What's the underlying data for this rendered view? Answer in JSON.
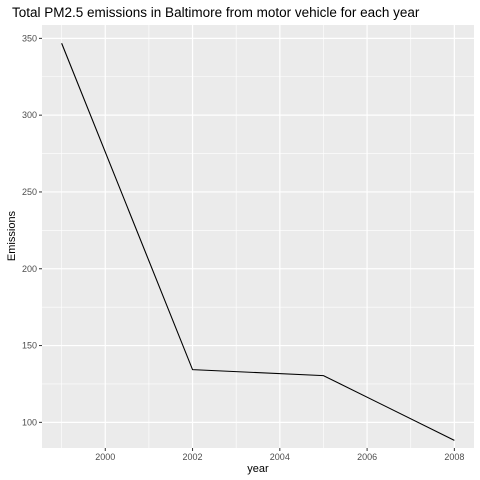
{
  "chart_data": {
    "type": "line",
    "title": "Total PM2.5 emissions in Baltimore from motor vehicle for each year",
    "xlabel": "year",
    "ylabel": "Emissions",
    "x": [
      1999,
      2002,
      2005,
      2008
    ],
    "series": [
      {
        "values": [
          346.82,
          134.31,
          130.43,
          88.28
        ]
      }
    ],
    "xlim": [
      1998.55,
      2008.45
    ],
    "ylim": [
      83.3,
      358.7
    ],
    "x_ticks": [
      2000,
      2002,
      2004,
      2006,
      2008
    ],
    "y_ticks": [
      100,
      150,
      200,
      250,
      300,
      350
    ],
    "grid": true,
    "legend": "none",
    "colors": {
      "panel_background": "#ebebeb",
      "grid": "#ffffff",
      "line": "#000000"
    }
  }
}
